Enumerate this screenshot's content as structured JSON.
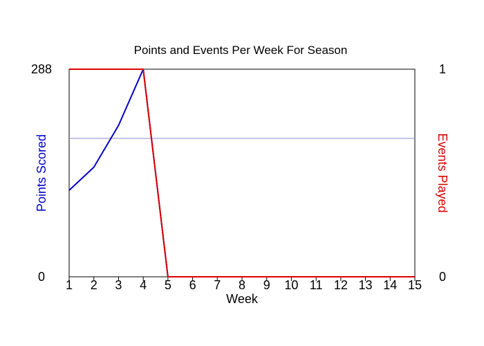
{
  "chart_data": {
    "type": "line",
    "title": "Points and Events Per Week For Season",
    "xlabel": "Week",
    "x": [
      1,
      2,
      3,
      4,
      5,
      6,
      7,
      8,
      9,
      10,
      11,
      12,
      13,
      14,
      15
    ],
    "xlim": [
      1,
      15
    ],
    "y_left": {
      "label": "Points Scored",
      "ylim": [
        0,
        288
      ],
      "tick_labels": [
        "0",
        "288"
      ],
      "color": "#0000cc"
    },
    "y_right": {
      "label": "Events Played",
      "ylim": [
        0,
        1
      ],
      "tick_labels": [
        "0",
        "1"
      ],
      "color": "#dd0000"
    },
    "reference_line": {
      "axis": "left",
      "value": 192,
      "color": "#8888cc"
    },
    "series": [
      {
        "axis": "left",
        "color": "#0000cc",
        "values": [
          120,
          152,
          210,
          288,
          0,
          0,
          0,
          0,
          0,
          0,
          0,
          0,
          0,
          0,
          0
        ]
      },
      {
        "axis": "right",
        "color": "#dd0000",
        "values": [
          1,
          1,
          1,
          1,
          0,
          0,
          0,
          0,
          0,
          0,
          0,
          0,
          0,
          0,
          0
        ]
      }
    ],
    "grid": false
  }
}
